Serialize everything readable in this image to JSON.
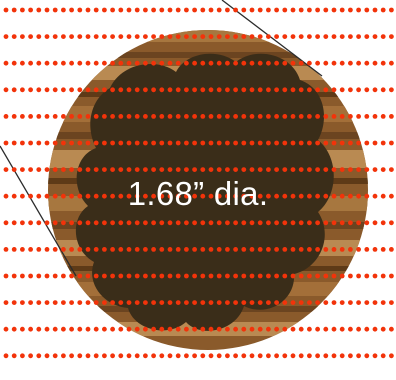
{
  "label": "1.68” dia.",
  "colors": {
    "background": "#ffffff",
    "dot": "#f2330a",
    "wood_rim": "#8a5a2b",
    "wood_light": "#b98a52",
    "wood_dark": "#5e3a17",
    "blob_fill": "#3a2d19",
    "line": "#2b2b2b",
    "label_text": "#ffffff"
  }
}
